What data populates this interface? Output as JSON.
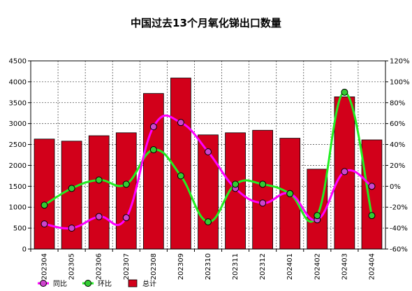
{
  "chart_data": {
    "type": "bar",
    "title": "中国过去13个月氧化锑出口数量",
    "categories": [
      "202304",
      "202305",
      "202306",
      "202307",
      "202308",
      "202309",
      "202310",
      "202311",
      "202312",
      "202401",
      "202402",
      "202403",
      "202404"
    ],
    "y_left": {
      "ylim": [
        0,
        4500
      ],
      "ticks": [
        "0",
        "500",
        "1000",
        "1500",
        "2000",
        "2500",
        "3000",
        "3500",
        "4000",
        "4500"
      ]
    },
    "y_right": {
      "ylim": [
        -60,
        120
      ],
      "ticks": [
        "-60%",
        "-40%",
        "-20%",
        "0%",
        "20%",
        "40%",
        "60%",
        "80%",
        "100%",
        "120%"
      ]
    },
    "grid": true,
    "legend_position": "bottom-left",
    "series": [
      {
        "name": "总计",
        "type": "bar",
        "axis": "left",
        "color": "#d2001a",
        "values": [
          2630,
          2580,
          2710,
          2780,
          3720,
          4090,
          2730,
          2780,
          2840,
          2650,
          1910,
          3640,
          2610
        ]
      },
      {
        "name": "同比",
        "type": "line",
        "axis": "right",
        "color": "#ff00ff",
        "marker_color": "#cc44cc",
        "values": [
          -36,
          -40,
          -29,
          -30,
          57,
          61,
          33,
          -2,
          -16,
          -7,
          -32,
          14,
          0
        ]
      },
      {
        "name": "环比",
        "type": "line",
        "axis": "right",
        "color": "#22ee22",
        "marker_color": "#33cc33",
        "values": [
          -18,
          -2,
          6,
          2,
          35,
          10,
          -34,
          2,
          2,
          -7,
          -28,
          90,
          -28
        ]
      }
    ]
  }
}
